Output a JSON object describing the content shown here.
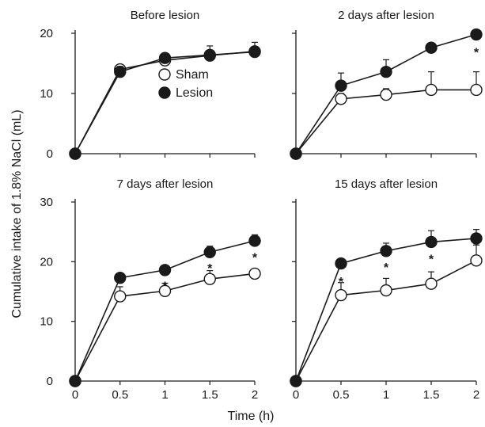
{
  "figure": {
    "ylabel": "Cumulative intake of 1.8% NaCl (mL)",
    "xlabel": "Time (h)"
  },
  "legend": {
    "sham": "Sham",
    "lesion": "Lesion"
  },
  "chart_data": [
    {
      "type": "line",
      "title": "Before lesion",
      "x": [
        0,
        0.5,
        1,
        1.5,
        2
      ],
      "ylim": [
        0,
        20
      ],
      "xlim": [
        0,
        2
      ],
      "yticks": [
        0,
        10,
        20
      ],
      "xticks": [],
      "series": [
        {
          "name": "Sham",
          "values": [
            0,
            14.0,
            15.5,
            16.3,
            17.0
          ],
          "error": [
            0,
            0.8,
            0.7,
            0.8,
            0.8
          ],
          "marker": "open-circle"
        },
        {
          "name": "Lesion",
          "values": [
            0,
            13.6,
            15.9,
            16.4,
            16.9
          ],
          "error": [
            0,
            0.9,
            0.8,
            1.5,
            1.6
          ],
          "marker": "filled-circle"
        }
      ],
      "significance": []
    },
    {
      "type": "line",
      "title": "2 days after lesion",
      "x": [
        0,
        0.5,
        1,
        1.5,
        2
      ],
      "ylim": [
        0,
        20
      ],
      "xlim": [
        0,
        2
      ],
      "yticks": [],
      "xticks": [],
      "series": [
        {
          "name": "Sham",
          "values": [
            0,
            9.1,
            9.8,
            10.6,
            10.6
          ],
          "error": [
            0,
            0.9,
            1.0,
            3.0,
            3.0
          ],
          "marker": "open-circle"
        },
        {
          "name": "Lesion",
          "values": [
            0,
            11.3,
            13.6,
            17.6,
            19.8
          ],
          "error": [
            0,
            2.1,
            2.0,
            0.4,
            0.5
          ],
          "marker": "filled-circle"
        }
      ],
      "significance": [
        {
          "x": 2,
          "y": 17.3,
          "label": "*"
        }
      ]
    },
    {
      "type": "line",
      "title": "7 days after lesion",
      "x": [
        0,
        0.5,
        1,
        1.5,
        2
      ],
      "ylim": [
        0,
        30
      ],
      "xlim": [
        0,
        2
      ],
      "yticks": [
        0,
        10,
        20,
        30
      ],
      "xticks": [
        "0",
        "0.5",
        "1",
        "1.5",
        "2"
      ],
      "series": [
        {
          "name": "Sham",
          "values": [
            0,
            14.2,
            15.1,
            17.1,
            18.0
          ],
          "error": [
            0,
            1.6,
            1.3,
            1.4,
            0.7
          ],
          "marker": "open-circle"
        },
        {
          "name": "Lesion",
          "values": [
            0,
            17.3,
            18.6,
            21.6,
            23.5
          ],
          "error": [
            0,
            0.5,
            0.7,
            1.0,
            1.0
          ],
          "marker": "filled-circle"
        }
      ],
      "significance": [
        {
          "x": 1,
          "y": 16.4,
          "label": "*"
        },
        {
          "x": 1.5,
          "y": 19.4,
          "label": "*"
        },
        {
          "x": 2,
          "y": 21.2,
          "label": "*"
        }
      ]
    },
    {
      "type": "line",
      "title": "15 days after lesion",
      "x": [
        0,
        0.5,
        1,
        1.5,
        2
      ],
      "ylim": [
        0,
        30
      ],
      "xlim": [
        0,
        2
      ],
      "yticks": [],
      "xticks": [
        "0",
        "0.5",
        "1",
        "1.5",
        "2"
      ],
      "series": [
        {
          "name": "Sham",
          "values": [
            0,
            14.4,
            15.2,
            16.3,
            20.2
          ],
          "error": [
            0,
            2.1,
            2.0,
            2.0,
            2.6
          ],
          "marker": "open-circle"
        },
        {
          "name": "Lesion",
          "values": [
            0,
            19.7,
            21.8,
            23.3,
            23.9
          ],
          "error": [
            0,
            0.5,
            1.3,
            1.9,
            1.5
          ],
          "marker": "filled-circle"
        }
      ],
      "significance": [
        {
          "x": 0.5,
          "y": 17.1,
          "label": "*"
        },
        {
          "x": 1,
          "y": 19.5,
          "label": "*"
        },
        {
          "x": 1.5,
          "y": 20.9,
          "label": "*"
        }
      ]
    }
  ]
}
